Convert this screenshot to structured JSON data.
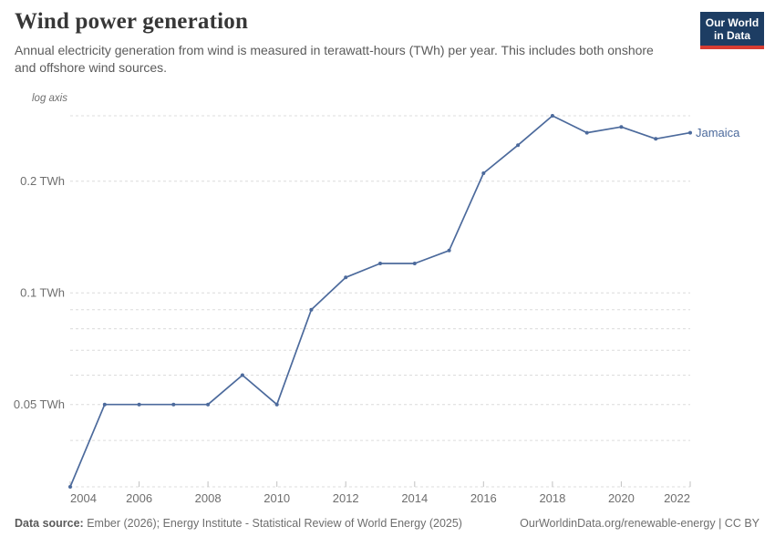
{
  "header": {
    "title": "Wind power generation",
    "subtitle": "Annual electricity generation from wind is measured in terawatt-hours (TWh) per year. This includes both onshore and offshore wind sources.",
    "logo": {
      "line1": "Our World",
      "line2": "in Data",
      "bg_color": "#1d3d63",
      "accent_color": "#d73c32"
    }
  },
  "chart_data": {
    "type": "line",
    "title": "Wind power generation",
    "axis_note": "log axis",
    "unit": "TWh",
    "y_scale": "log",
    "grid": true,
    "legend_position": "end-of-line-label",
    "x": [
      2004,
      2005,
      2006,
      2007,
      2008,
      2009,
      2010,
      2011,
      2012,
      2013,
      2014,
      2015,
      2016,
      2017,
      2018,
      2019,
      2020,
      2021,
      2022
    ],
    "series": [
      {
        "name": "Jamaica",
        "color": "#4c6a9c",
        "values": [
          0.03,
          0.05,
          0.05,
          0.05,
          0.05,
          0.06,
          0.05,
          0.09,
          0.11,
          0.12,
          0.12,
          0.13,
          0.21,
          0.25,
          0.3,
          0.27,
          0.28,
          0.26,
          0.27
        ]
      }
    ],
    "ylim": [
      0.03,
      0.3
    ],
    "y_gridlines": [
      0.03,
      0.04,
      0.05,
      0.06,
      0.07,
      0.08,
      0.09,
      0.1,
      0.2,
      0.3
    ],
    "y_ticks": [
      {
        "value": 0.05,
        "label": "0.05 TWh"
      },
      {
        "value": 0.1,
        "label": "0.1 TWh"
      },
      {
        "value": 0.2,
        "label": "0.2 TWh"
      }
    ],
    "x_ticks": [
      2004,
      2006,
      2008,
      2010,
      2012,
      2014,
      2016,
      2018,
      2020,
      2022
    ],
    "colors": {
      "grid": "#dcdcdc",
      "axis_text": "#6e6e6e",
      "tick_mark": "#c2c2c2"
    }
  },
  "footer": {
    "source_label": "Data source:",
    "source_text": "Ember (2026); Energy Institute - Statistical Review of World Energy (2025)",
    "link_text": "OurWorldinData.org/renewable-energy | CC BY"
  }
}
